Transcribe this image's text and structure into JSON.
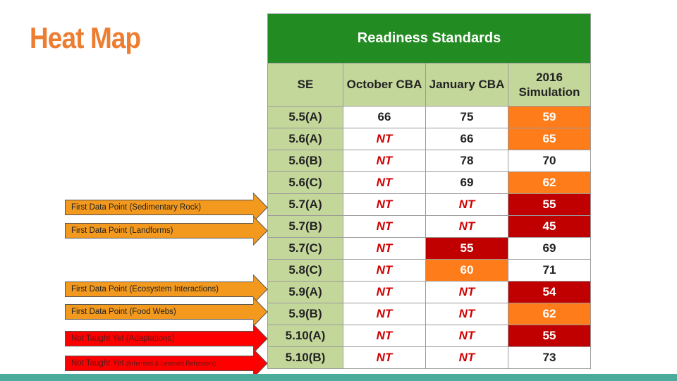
{
  "slide": {
    "title": "Heat Map",
    "colors": {
      "title": "#ed7d31",
      "banner": "#228b22",
      "header": "#c4d79b",
      "orange": "#ff7c1a",
      "red": "#c00000",
      "nt": "#d00000",
      "bottom_bar": "#4bac9c"
    }
  },
  "table": {
    "banner": "Readiness Standards",
    "headers": [
      "SE",
      "October CBA",
      "January CBA",
      "2016 Simulation"
    ],
    "rows": [
      {
        "se": "5.5(A)",
        "oct": "66",
        "jan": "75",
        "sim": "59",
        "oct_style": "",
        "jan_style": "",
        "sim_style": "orange"
      },
      {
        "se": "5.6(A)",
        "oct": "NT",
        "jan": "66",
        "sim": "65",
        "oct_style": "nt",
        "jan_style": "",
        "sim_style": "orange"
      },
      {
        "se": "5.6(B)",
        "oct": "NT",
        "jan": "78",
        "sim": "70",
        "oct_style": "nt",
        "jan_style": "",
        "sim_style": ""
      },
      {
        "se": "5.6(C)",
        "oct": "NT",
        "jan": "69",
        "sim": "62",
        "oct_style": "nt",
        "jan_style": "",
        "sim_style": "orange"
      },
      {
        "se": "5.7(A)",
        "oct": "NT",
        "jan": "NT",
        "sim": "55",
        "oct_style": "nt",
        "jan_style": "nt",
        "sim_style": "red"
      },
      {
        "se": "5.7(B)",
        "oct": "NT",
        "jan": "NT",
        "sim": "45",
        "oct_style": "nt",
        "jan_style": "nt",
        "sim_style": "red"
      },
      {
        "se": "5.7(C)",
        "oct": "NT",
        "jan": "55",
        "sim": "69",
        "oct_style": "nt",
        "jan_style": "red",
        "sim_style": ""
      },
      {
        "se": "5.8(C)",
        "oct": "NT",
        "jan": "60",
        "sim": "71",
        "oct_style": "nt",
        "jan_style": "orange",
        "sim_style": ""
      },
      {
        "se": "5.9(A)",
        "oct": "NT",
        "jan": "NT",
        "sim": "54",
        "oct_style": "nt",
        "jan_style": "nt",
        "sim_style": "red"
      },
      {
        "se": "5.9(B)",
        "oct": "NT",
        "jan": "NT",
        "sim": "62",
        "oct_style": "nt",
        "jan_style": "nt",
        "sim_style": "orange"
      },
      {
        "se": "5.10(A)",
        "oct": "NT",
        "jan": "NT",
        "sim": "55",
        "oct_style": "nt",
        "jan_style": "nt",
        "sim_style": "red"
      },
      {
        "se": "5.10(B)",
        "oct": "NT",
        "jan": "NT",
        "sim": "73",
        "oct_style": "nt",
        "jan_style": "nt",
        "sim_style": ""
      }
    ]
  },
  "callouts": [
    {
      "text": "First Data Point (Sedimentary Rock)",
      "small": "",
      "color": "orange"
    },
    {
      "text": "First Data Point (Landforms)",
      "small": "",
      "color": "orange"
    },
    {
      "text": "First Data Point (Ecosystem Interactions)",
      "small": "",
      "color": "orange"
    },
    {
      "text": "First Data Point (Food Webs)",
      "small": "",
      "color": "orange"
    },
    {
      "text": "Not Taught Yet (Adaptations)",
      "small": "",
      "color": "red"
    },
    {
      "text": "Not Taught Yet ",
      "small": "(Inherited & Learned Behaviors)",
      "color": "red"
    }
  ]
}
